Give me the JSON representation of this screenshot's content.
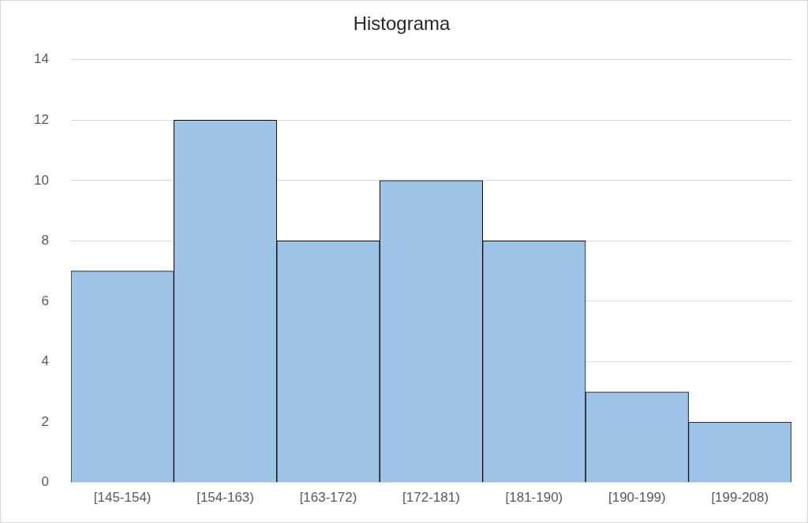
{
  "chart_data": {
    "type": "histogram",
    "title": "Histograma",
    "categories": [
      "[145-154)",
      "[154-163)",
      "[163-172)",
      "[172-181)",
      "[181-190)",
      "[190-199)",
      "[199-208)"
    ],
    "values": [
      7,
      12,
      8,
      10,
      8,
      3,
      2
    ],
    "color": "#9dc3e6",
    "ylim": [
      0,
      14
    ],
    "yticks": [
      0,
      2,
      4,
      6,
      8,
      10,
      12,
      14
    ],
    "grid": true
  }
}
